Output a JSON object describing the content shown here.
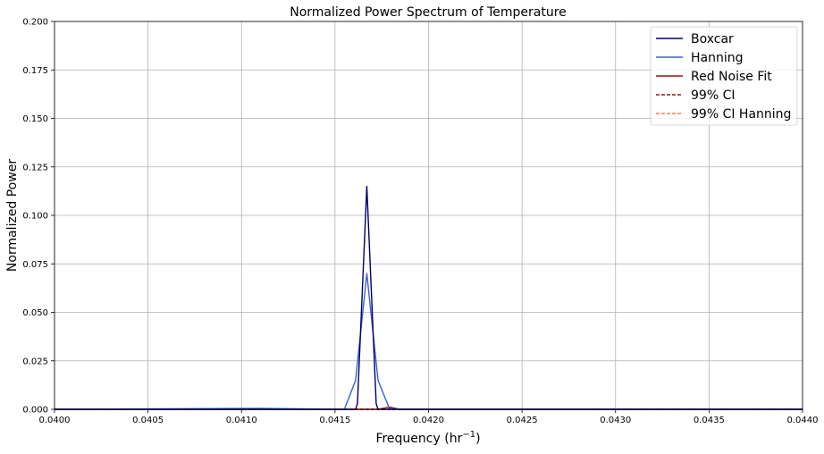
{
  "chart_data": {
    "type": "line",
    "title": "Normalized Power Spectrum of Temperature",
    "xlabel": "Frequency (hr",
    "xlabel_sup": "−1",
    "xlabel_end": ")",
    "ylabel": "Normalized Power",
    "xlim": [
      0.04,
      0.044
    ],
    "ylim": [
      0,
      0.2
    ],
    "xticks": [
      "0.0400",
      "0.0405",
      "0.0410",
      "0.0415",
      "0.0420",
      "0.0425",
      "0.0430",
      "0.0435",
      "0.0440"
    ],
    "yticks": [
      "0.000",
      "0.025",
      "0.050",
      "0.075",
      "0.100",
      "0.125",
      "0.150",
      "0.175",
      "0.200"
    ],
    "grid": true,
    "legend_position": "top-right",
    "series": [
      {
        "name": "Boxcar",
        "color": "#00006e",
        "style": "solid",
        "x": [
          0.04,
          0.04161,
          0.04162,
          0.04167,
          0.04172,
          0.04173,
          0.044
        ],
        "y": [
          0,
          0,
          0.003,
          0.115,
          0.003,
          0,
          0
        ]
      },
      {
        "name": "Hanning",
        "color": "#3a5fcd",
        "style": "solid",
        "x": [
          0.04,
          0.0411,
          0.04155,
          0.04161,
          0.04167,
          0.04173,
          0.04179,
          0.04185,
          0.044
        ],
        "y": [
          0,
          0.0005,
          0,
          0.015,
          0.07,
          0.015,
          0.0005,
          0,
          0
        ]
      },
      {
        "name": "Red Noise Fit",
        "color": "#a01010",
        "style": "solid",
        "x": [
          0.04,
          0.04173,
          0.04179,
          0.04185,
          0.044
        ],
        "y": [
          0,
          0,
          0.0012,
          0,
          0
        ]
      },
      {
        "name": "99% CI",
        "color": "#8b1a1a",
        "style": "dashed",
        "x": [
          0.04,
          0.044
        ],
        "y": [
          0,
          0
        ]
      },
      {
        "name": "99% CI Hanning",
        "color": "#f08050",
        "style": "dashed",
        "x": [
          0.04,
          0.044
        ],
        "y": [
          0,
          0
        ]
      }
    ]
  }
}
